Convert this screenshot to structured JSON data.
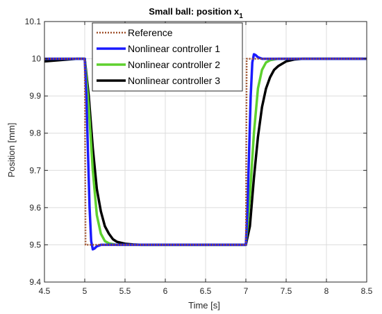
{
  "chart_data": {
    "type": "line",
    "title": "Small ball: position x",
    "title_subscript": "1",
    "xlabel": "Time [s]",
    "ylabel": "Position [mm]",
    "xlim": [
      4.5,
      8.5
    ],
    "ylim": [
      9.4,
      10.1
    ],
    "xticks": [
      4.5,
      5,
      5.5,
      6,
      6.5,
      7,
      7.5,
      8,
      8.5
    ],
    "yticks": [
      9.4,
      9.5,
      9.6,
      9.7,
      9.8,
      9.9,
      10,
      10.1
    ],
    "xtick_labels": [
      "4.5",
      "5",
      "5.5",
      "6",
      "6.5",
      "7",
      "7.5",
      "8",
      "8.5"
    ],
    "ytick_labels": [
      "9.4",
      "9.5",
      "9.6",
      "9.7",
      "9.8",
      "9.9",
      "10",
      "10.1"
    ],
    "grid": true,
    "legend_position": "top-left",
    "series": [
      {
        "name": "Reference",
        "color": "#a0522d",
        "style": "dotted",
        "x": [
          4.5,
          5.0,
          5.01,
          7.0,
          7.01,
          8.5
        ],
        "y": [
          10.0,
          10.0,
          9.5,
          9.5,
          10.0,
          10.0
        ]
      },
      {
        "name": "Nonlinear controller 1",
        "color": "#1a1aff",
        "style": "solid",
        "x": [
          4.5,
          5.0,
          5.02,
          5.04,
          5.06,
          5.08,
          5.1,
          5.12,
          5.15,
          5.2,
          5.3,
          5.5,
          7.0,
          7.02,
          7.04,
          7.06,
          7.08,
          7.1,
          7.12,
          7.15,
          7.2,
          7.3,
          7.5,
          8.5
        ],
        "y": [
          10.0,
          10.0,
          9.9,
          9.75,
          9.6,
          9.51,
          9.488,
          9.49,
          9.496,
          9.5,
          9.5,
          9.5,
          9.5,
          9.6,
          9.75,
          9.9,
          9.99,
          10.012,
          10.01,
          10.004,
          10.0,
          10.0,
          10.0,
          10.0
        ]
      },
      {
        "name": "Nonlinear controller 2",
        "color": "#5ed12e",
        "style": "solid",
        "x": [
          4.5,
          5.0,
          5.05,
          5.1,
          5.15,
          5.2,
          5.25,
          5.3,
          5.4,
          5.6,
          7.0,
          7.05,
          7.1,
          7.15,
          7.2,
          7.25,
          7.3,
          7.4,
          7.6,
          8.5
        ],
        "y": [
          10.0,
          10.0,
          9.87,
          9.7,
          9.58,
          9.53,
          9.51,
          9.504,
          9.5,
          9.5,
          9.5,
          9.63,
          9.8,
          9.92,
          9.97,
          9.99,
          9.996,
          10.0,
          10.0,
          10.0
        ]
      },
      {
        "name": "Nonlinear controller 3",
        "color": "#000000",
        "style": "solid",
        "x": [
          4.5,
          4.9,
          5.0,
          5.05,
          5.1,
          5.15,
          5.2,
          5.25,
          5.3,
          5.35,
          5.4,
          5.5,
          5.6,
          5.7,
          5.8,
          7.0,
          7.05,
          7.1,
          7.15,
          7.2,
          7.25,
          7.3,
          7.35,
          7.4,
          7.5,
          7.6,
          7.7,
          7.8,
          8.5
        ],
        "y": [
          9.993,
          10.0,
          10.0,
          9.9,
          9.76,
          9.65,
          9.59,
          9.55,
          9.53,
          9.515,
          9.508,
          9.503,
          9.501,
          9.5,
          9.5,
          9.5,
          9.55,
          9.68,
          9.79,
          9.87,
          9.92,
          9.95,
          9.97,
          9.98,
          9.993,
          9.998,
          10.0,
          10.0,
          10.0
        ]
      }
    ]
  }
}
